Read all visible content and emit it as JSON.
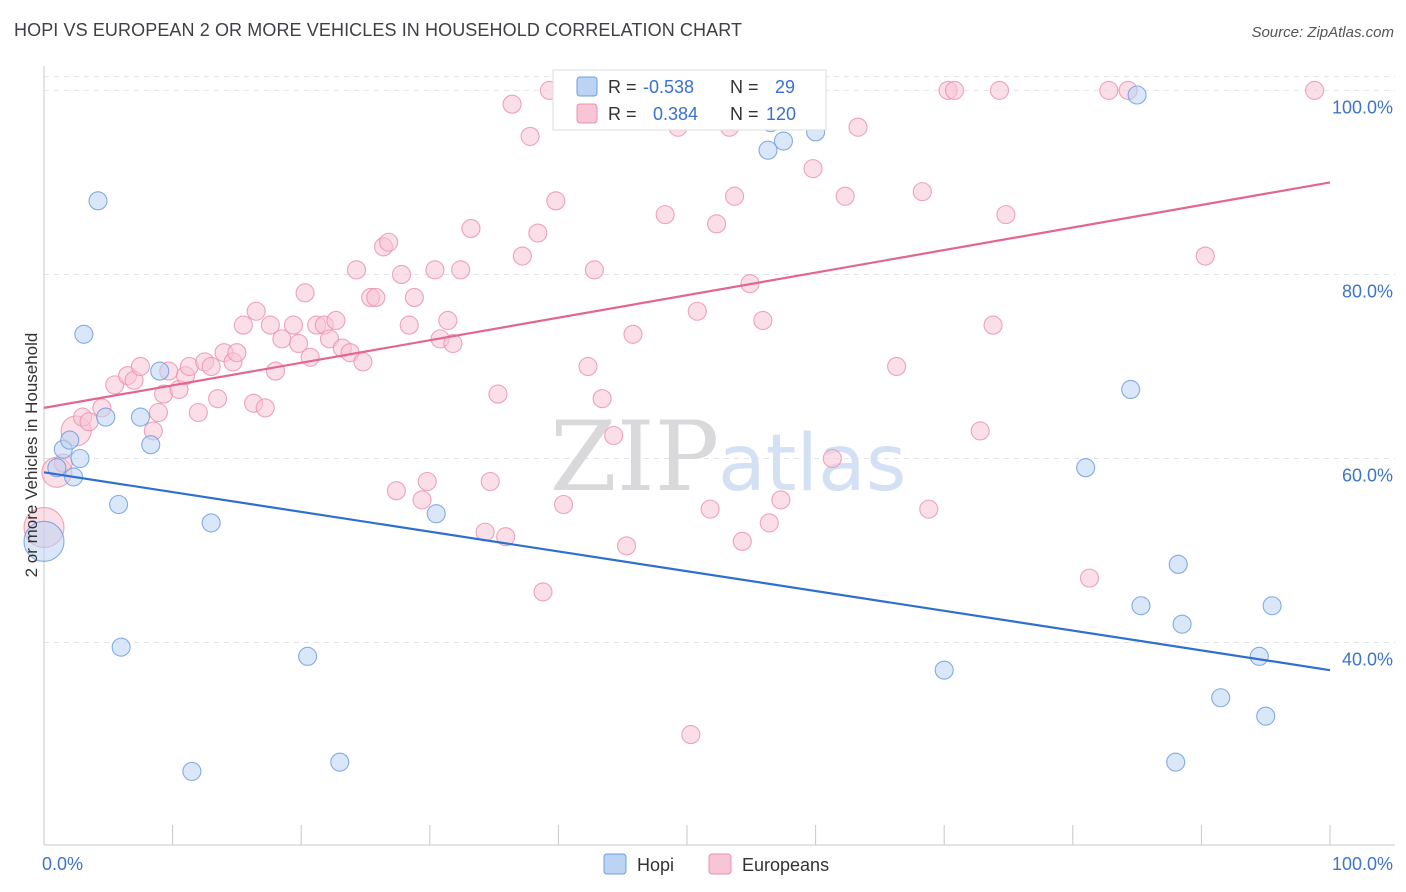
{
  "chart_data": {
    "type": "scatter",
    "title": "HOPI VS EUROPEAN 2 OR MORE VEHICLES IN HOUSEHOLD CORRELATION CHART",
    "source": "Source: ZipAtlas.com",
    "xlabel": "",
    "ylabel": "2 or more Vehicles in Household",
    "xlim": [
      0,
      100
    ],
    "ylim": [
      18,
      102
    ],
    "x_tick_labels": [
      "0.0%",
      "100.0%"
    ],
    "y_ticks": [
      40,
      60,
      80,
      100
    ],
    "y_tick_labels": [
      "40.0%",
      "60.0%",
      "80.0%",
      "100.0%"
    ],
    "watermark": {
      "zip": "ZIP",
      "atlas": "atlas"
    },
    "colors": {
      "hopi": "#6d9de0",
      "hopi_fill": "#bcd3f4",
      "hopi_line": "#2e6fd0",
      "europeans": "#ec93ae",
      "europeans_fill": "#f7c5d5",
      "europeans_line": "#e4658f"
    },
    "legend": {
      "r_label": "R =",
      "n_label": "N =",
      "hopi": {
        "r": "-0.538",
        "n": "29"
      },
      "europeans": {
        "r": "0.384",
        "n": "120"
      }
    },
    "series": [
      {
        "name": "Hopi",
        "trend": {
          "x": [
            0,
            100
          ],
          "y": [
            58.5,
            37.0
          ]
        },
        "points": [
          [
            0,
            51,
            3
          ],
          [
            1,
            59,
            1
          ],
          [
            1.5,
            61,
            1
          ],
          [
            2,
            62,
            1
          ],
          [
            2.3,
            58,
            1
          ],
          [
            2.8,
            60,
            1
          ],
          [
            4.2,
            88,
            1
          ],
          [
            3.1,
            73.5,
            1
          ],
          [
            4.8,
            64.5,
            1
          ],
          [
            5.8,
            55,
            1
          ],
          [
            6,
            39.5,
            1
          ],
          [
            7.5,
            64.5,
            1
          ],
          [
            8.3,
            61.5,
            1
          ],
          [
            9,
            69.5,
            1
          ],
          [
            11.5,
            26,
            1
          ],
          [
            13,
            53,
            1
          ],
          [
            20.5,
            38.5,
            1
          ],
          [
            23,
            27,
            1
          ],
          [
            30.5,
            54,
            1
          ],
          [
            56.5,
            96.5,
            1
          ],
          [
            60,
            99.5,
            1
          ],
          [
            56,
            97.5,
            1
          ],
          [
            56.5,
            99,
            1
          ],
          [
            60,
            95.5,
            1
          ],
          [
            57.5,
            94.5,
            1
          ],
          [
            56.3,
            93.5,
            1
          ],
          [
            70,
            37,
            1
          ],
          [
            84.5,
            67.5,
            1
          ],
          [
            85,
            99.5,
            1
          ],
          [
            81,
            59,
            1
          ],
          [
            85.3,
            44,
            1
          ],
          [
            88,
            27,
            1
          ],
          [
            88.2,
            48.5,
            1
          ],
          [
            88.5,
            42,
            1
          ],
          [
            91.5,
            34,
            1
          ],
          [
            94.5,
            38.5,
            1
          ],
          [
            95,
            32,
            1
          ],
          [
            95.5,
            44,
            1
          ]
        ]
      },
      {
        "name": "Europeans",
        "trend": {
          "x": [
            0,
            100
          ],
          "y": [
            65.5,
            90.0
          ]
        },
        "points": [
          [
            0,
            52.5,
            3
          ],
          [
            1,
            58.5,
            2
          ],
          [
            1.5,
            59.5,
            1
          ],
          [
            2.5,
            63,
            2
          ],
          [
            3,
            64.5,
            1
          ],
          [
            3.5,
            64,
            1
          ],
          [
            4.5,
            65.5,
            1
          ],
          [
            5.5,
            68,
            1
          ],
          [
            6.5,
            69,
            1
          ],
          [
            7,
            68.5,
            1
          ],
          [
            7.5,
            70,
            1
          ],
          [
            8.5,
            63,
            1
          ],
          [
            8.9,
            65,
            1
          ],
          [
            9.3,
            67,
            1
          ],
          [
            9.7,
            69.5,
            1
          ],
          [
            10.5,
            67.5,
            1
          ],
          [
            11,
            69,
            1
          ],
          [
            11.3,
            70,
            1
          ],
          [
            12,
            65,
            1
          ],
          [
            12.5,
            70.5,
            1
          ],
          [
            13,
            70,
            1
          ],
          [
            13.5,
            66.5,
            1
          ],
          [
            14,
            71.5,
            1
          ],
          [
            14.7,
            70.5,
            1
          ],
          [
            15,
            71.5,
            1
          ],
          [
            15.5,
            74.5,
            1
          ],
          [
            16.3,
            66,
            1
          ],
          [
            16.5,
            76,
            1
          ],
          [
            17.2,
            65.5,
            1
          ],
          [
            17.6,
            74.5,
            1
          ],
          [
            18,
            69.5,
            1
          ],
          [
            18.5,
            73,
            1
          ],
          [
            19.4,
            74.5,
            1
          ],
          [
            19.8,
            72.5,
            1
          ],
          [
            20.3,
            78,
            1
          ],
          [
            20.7,
            71,
            1
          ],
          [
            21.2,
            74.5,
            1
          ],
          [
            21.8,
            74.5,
            1
          ],
          [
            22.2,
            73,
            1
          ],
          [
            22.7,
            75,
            1
          ],
          [
            23.2,
            72,
            1
          ],
          [
            23.8,
            71.5,
            1
          ],
          [
            24.3,
            80.5,
            1
          ],
          [
            24.8,
            70.5,
            1
          ],
          [
            25.4,
            77.5,
            1
          ],
          [
            25.8,
            77.5,
            1
          ],
          [
            26.4,
            83,
            1
          ],
          [
            26.8,
            83.5,
            1
          ],
          [
            27.4,
            56.5,
            1
          ],
          [
            27.8,
            80,
            1
          ],
          [
            28.4,
            74.5,
            1
          ],
          [
            28.8,
            77.5,
            1
          ],
          [
            29.4,
            55.5,
            1
          ],
          [
            29.8,
            57.5,
            1
          ],
          [
            30.4,
            80.5,
            1
          ],
          [
            30.8,
            73,
            1
          ],
          [
            31.4,
            75,
            1
          ],
          [
            31.8,
            72.5,
            1
          ],
          [
            32.4,
            80.5,
            1
          ],
          [
            33.2,
            85,
            1
          ],
          [
            34.3,
            52,
            1
          ],
          [
            34.7,
            57.5,
            1
          ],
          [
            35.3,
            67,
            1
          ],
          [
            35.9,
            51.5,
            1
          ],
          [
            36.4,
            98.5,
            1
          ],
          [
            37.2,
            82,
            1
          ],
          [
            37.8,
            95,
            1
          ],
          [
            38.4,
            84.5,
            1
          ],
          [
            38.8,
            45.5,
            1
          ],
          [
            39.3,
            100,
            1
          ],
          [
            39.8,
            88,
            1
          ],
          [
            40.4,
            55,
            1
          ],
          [
            41.4,
            100,
            1
          ],
          [
            42.3,
            70,
            1
          ],
          [
            42.8,
            80.5,
            1
          ],
          [
            43.4,
            66.5,
            1
          ],
          [
            44.3,
            62.5,
            1
          ],
          [
            45.3,
            50.5,
            1
          ],
          [
            45.8,
            73.5,
            1
          ],
          [
            46.8,
            97.5,
            1
          ],
          [
            47.8,
            97,
            1
          ],
          [
            48.3,
            86.5,
            1
          ],
          [
            49.3,
            96,
            1
          ],
          [
            50.3,
            30,
            1
          ],
          [
            50.8,
            76,
            1
          ],
          [
            51.8,
            54.5,
            1
          ],
          [
            52.3,
            85.5,
            1
          ],
          [
            53.3,
            96,
            1
          ],
          [
            53.7,
            88.5,
            1
          ],
          [
            54.3,
            51,
            1
          ],
          [
            54.9,
            79,
            1
          ],
          [
            55.9,
            75,
            1
          ],
          [
            56.4,
            53,
            1
          ],
          [
            57.3,
            55.5,
            1
          ],
          [
            59.8,
            91.5,
            1
          ],
          [
            61.3,
            60,
            1
          ],
          [
            62.3,
            88.5,
            1
          ],
          [
            63.3,
            96,
            1
          ],
          [
            66.3,
            70,
            1
          ],
          [
            68.3,
            89,
            1
          ],
          [
            68.8,
            54.5,
            1
          ],
          [
            70.3,
            100,
            1
          ],
          [
            70.8,
            100,
            1
          ],
          [
            72.8,
            63,
            1
          ],
          [
            73.8,
            74.5,
            1
          ],
          [
            74.3,
            100,
            1
          ],
          [
            74.8,
            86.5,
            1
          ],
          [
            81.3,
            47,
            1
          ],
          [
            82.8,
            100,
            1
          ],
          [
            84.3,
            100,
            1
          ],
          [
            90.3,
            82,
            1
          ],
          [
            98.8,
            100,
            1
          ]
        ]
      }
    ]
  }
}
